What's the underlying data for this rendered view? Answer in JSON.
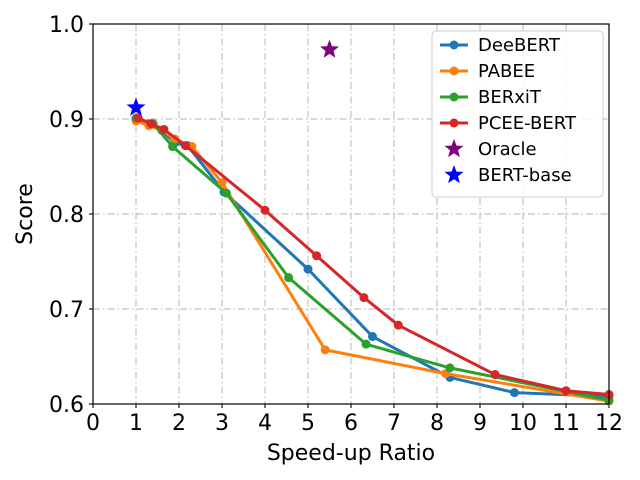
{
  "chart_data": {
    "type": "line",
    "title": "",
    "xlabel": "Speed-up Ratio",
    "ylabel": "Score",
    "xlim": [
      0,
      12
    ],
    "ylim": [
      0.6,
      1.0
    ],
    "xticks": [
      0,
      1,
      2,
      3,
      4,
      5,
      6,
      7,
      8,
      9,
      10,
      11,
      12
    ],
    "yticks": [
      0.6,
      0.7,
      0.8,
      0.9,
      1.0
    ],
    "xtick_labels": [
      "0",
      "1",
      "2",
      "3",
      "4",
      "5",
      "6",
      "7",
      "8",
      "9",
      "10",
      "11",
      "12"
    ],
    "ytick_labels": [
      "0.6",
      "0.7",
      "0.8",
      "0.9",
      "1.0"
    ],
    "grid": true,
    "legend_position": "top-right",
    "series": [
      {
        "name": "DeeBERT",
        "color": "#1f77b4",
        "marker": "circle",
        "x": [
          1.0,
          1.3,
          1.6,
          1.9,
          2.2,
          3.05,
          5.0,
          6.5,
          8.3,
          9.8,
          12.0
        ],
        "y": [
          0.9,
          0.895,
          0.888,
          0.875,
          0.872,
          0.823,
          0.742,
          0.671,
          0.628,
          0.612,
          0.608
        ]
      },
      {
        "name": "PABEE",
        "color": "#ff7f0e",
        "marker": "circle",
        "x": [
          1.0,
          1.3,
          1.6,
          1.9,
          2.3,
          3.0,
          5.4,
          8.2,
          12.0
        ],
        "y": [
          0.898,
          0.893,
          0.888,
          0.879,
          0.871,
          0.833,
          0.657,
          0.632,
          0.603
        ]
      },
      {
        "name": "BERxiT",
        "color": "#2ca02c",
        "marker": "circle",
        "x": [
          1.0,
          1.4,
          1.85,
          3.1,
          4.55,
          6.35,
          8.3,
          12.0
        ],
        "y": [
          0.901,
          0.895,
          0.871,
          0.822,
          0.733,
          0.663,
          0.638,
          0.604
        ]
      },
      {
        "name": "PCEE-BERT",
        "color": "#d62728",
        "marker": "circle",
        "x": [
          1.05,
          1.35,
          1.65,
          2.15,
          4.0,
          5.2,
          6.3,
          7.1,
          9.35,
          11.0,
          12.0
        ],
        "y": [
          0.901,
          0.895,
          0.889,
          0.872,
          0.804,
          0.756,
          0.712,
          0.683,
          0.631,
          0.614,
          0.61
        ]
      }
    ],
    "points": [
      {
        "name": "Oracle",
        "color": "#800080",
        "marker": "star",
        "x": 5.5,
        "y": 0.973
      },
      {
        "name": "BERT-base",
        "color": "#0000ff",
        "marker": "star",
        "x": 1.0,
        "y": 0.912
      }
    ],
    "legend": [
      "DeeBERT",
      "PABEE",
      "BERxiT",
      "PCEE-BERT",
      "Oracle",
      "BERT-base"
    ]
  }
}
